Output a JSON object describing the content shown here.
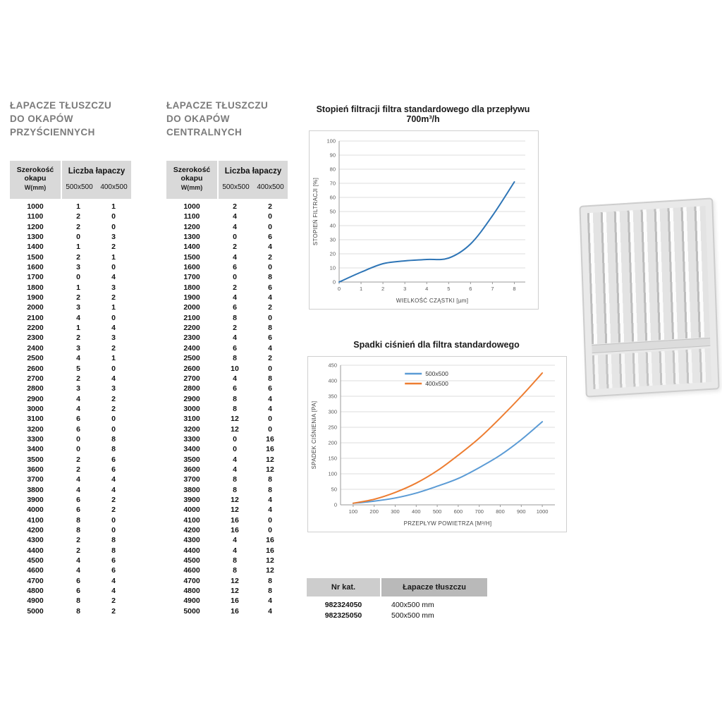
{
  "tables": [
    {
      "title_lines": [
        "ŁAPACZE TŁUSZCZU",
        "DO OKAPÓW",
        "PRZYŚCIENNYCH"
      ],
      "header": {
        "width_label": "Szerokość okapu",
        "width_sub": "W(mm)",
        "group": "Liczba łapaczy",
        "sub1": "500x500",
        "sub2": "400x500"
      },
      "rows": [
        [
          1000,
          1,
          1
        ],
        [
          1100,
          2,
          0
        ],
        [
          1200,
          2,
          0
        ],
        [
          1300,
          0,
          3
        ],
        [
          1400,
          1,
          2
        ],
        [
          1500,
          2,
          1
        ],
        [
          1600,
          3,
          0
        ],
        [
          1700,
          0,
          4
        ],
        [
          1800,
          1,
          3
        ],
        [
          1900,
          2,
          2
        ],
        [
          2000,
          3,
          1
        ],
        [
          2100,
          4,
          0
        ],
        [
          2200,
          1,
          4
        ],
        [
          2300,
          2,
          3
        ],
        [
          2400,
          3,
          2
        ],
        [
          2500,
          4,
          1
        ],
        [
          2600,
          5,
          0
        ],
        [
          2700,
          2,
          4
        ],
        [
          2800,
          3,
          3
        ],
        [
          2900,
          4,
          2
        ],
        [
          3000,
          4,
          2
        ],
        [
          3100,
          6,
          0
        ],
        [
          3200,
          6,
          0
        ],
        [
          3300,
          0,
          8
        ],
        [
          3400,
          0,
          8
        ],
        [
          3500,
          2,
          6
        ],
        [
          3600,
          2,
          6
        ],
        [
          3700,
          4,
          4
        ],
        [
          3800,
          4,
          4
        ],
        [
          3900,
          6,
          2
        ],
        [
          4000,
          6,
          2
        ],
        [
          4100,
          8,
          0
        ],
        [
          4200,
          8,
          0
        ],
        [
          4300,
          2,
          8
        ],
        [
          4400,
          2,
          8
        ],
        [
          4500,
          4,
          6
        ],
        [
          4600,
          4,
          6
        ],
        [
          4700,
          6,
          4
        ],
        [
          4800,
          6,
          4
        ],
        [
          4900,
          8,
          2
        ],
        [
          5000,
          8,
          2
        ]
      ]
    },
    {
      "title_lines": [
        "ŁAPACZE TŁUSZCZU",
        "DO OKAPÓW",
        "CENTRALNYCH"
      ],
      "header": {
        "width_label": "Szerokość okapu",
        "width_sub": "W(mm)",
        "group": "Liczba łapaczy",
        "sub1": "500x500",
        "sub2": "400x500"
      },
      "rows": [
        [
          1000,
          2,
          2
        ],
        [
          1100,
          4,
          0
        ],
        [
          1200,
          4,
          0
        ],
        [
          1300,
          0,
          6
        ],
        [
          1400,
          2,
          4
        ],
        [
          1500,
          4,
          2
        ],
        [
          1600,
          6,
          0
        ],
        [
          1700,
          0,
          8
        ],
        [
          1800,
          2,
          6
        ],
        [
          1900,
          4,
          4
        ],
        [
          2000,
          6,
          2
        ],
        [
          2100,
          8,
          0
        ],
        [
          2200,
          2,
          8
        ],
        [
          2300,
          4,
          6
        ],
        [
          2400,
          6,
          4
        ],
        [
          2500,
          8,
          2
        ],
        [
          2600,
          10,
          0
        ],
        [
          2700,
          4,
          8
        ],
        [
          2800,
          6,
          6
        ],
        [
          2900,
          8,
          4
        ],
        [
          3000,
          8,
          4
        ],
        [
          3100,
          12,
          0
        ],
        [
          3200,
          12,
          0
        ],
        [
          3300,
          0,
          16
        ],
        [
          3400,
          0,
          16
        ],
        [
          3500,
          4,
          12
        ],
        [
          3600,
          4,
          12
        ],
        [
          3700,
          8,
          8
        ],
        [
          3800,
          8,
          8
        ],
        [
          3900,
          12,
          4
        ],
        [
          4000,
          12,
          4
        ],
        [
          4100,
          16,
          0
        ],
        [
          4200,
          16,
          0
        ],
        [
          4300,
          4,
          16
        ],
        [
          4400,
          4,
          16
        ],
        [
          4500,
          8,
          12
        ],
        [
          4600,
          8,
          12
        ],
        [
          4700,
          12,
          8
        ],
        [
          4800,
          12,
          8
        ],
        [
          4900,
          16,
          4
        ],
        [
          5000,
          16,
          4
        ]
      ]
    }
  ],
  "chart_data": [
    {
      "type": "line",
      "title": "Stopień filtracji filtra standardowego dla przepływu 700m³/h",
      "xlabel": "WIELKOŚĆ CZĄSTKI [µm]",
      "ylabel": "STOPIEŃ FILTRACJI [%]",
      "x": [
        0,
        1,
        2,
        3,
        4,
        5,
        6,
        7,
        8
      ],
      "series": [
        {
          "name": "stopień filtracji",
          "color": "#2e75b6",
          "values": [
            0,
            7,
            13,
            15,
            16,
            17,
            27,
            47,
            71
          ]
        }
      ],
      "xlim": [
        0,
        8.5
      ],
      "ylim": [
        0,
        100
      ],
      "xticks": [
        0,
        1,
        2,
        3,
        4,
        5,
        6,
        7,
        8
      ],
      "yticks": [
        0,
        10,
        20,
        30,
        40,
        50,
        60,
        70,
        80,
        90,
        100
      ],
      "grid": true,
      "legend": false
    },
    {
      "type": "line",
      "title": "Spadki ciśnień dla filtra standardowego",
      "xlabel": "PRZEPŁYW POWIETRZA [M³/H]",
      "ylabel": "SPADEK CIŚNIENIA [PA]",
      "x": [
        100,
        200,
        300,
        400,
        500,
        600,
        700,
        800,
        900,
        1000
      ],
      "series": [
        {
          "name": "500x500",
          "color": "#5b9bd5",
          "values": [
            5,
            12,
            22,
            38,
            60,
            85,
            120,
            160,
            210,
            268
          ]
        },
        {
          "name": "400x500",
          "color": "#ed7d31",
          "values": [
            5,
            18,
            40,
            70,
            110,
            160,
            215,
            280,
            350,
            425
          ]
        }
      ],
      "xlim": [
        40,
        1060
      ],
      "ylim": [
        0,
        450
      ],
      "xticks": [
        100,
        200,
        300,
        400,
        500,
        600,
        700,
        800,
        900,
        1000
      ],
      "yticks": [
        0,
        50,
        100,
        150,
        200,
        250,
        300,
        350,
        400,
        450
      ],
      "grid": true,
      "legend": "top-center"
    }
  ],
  "catalog": {
    "headers": [
      "Nr kat.",
      "Łapacze tłuszczu"
    ],
    "rows": [
      [
        "982324050",
        "400x500 mm"
      ],
      [
        "982325050",
        "500x500 mm"
      ]
    ]
  }
}
